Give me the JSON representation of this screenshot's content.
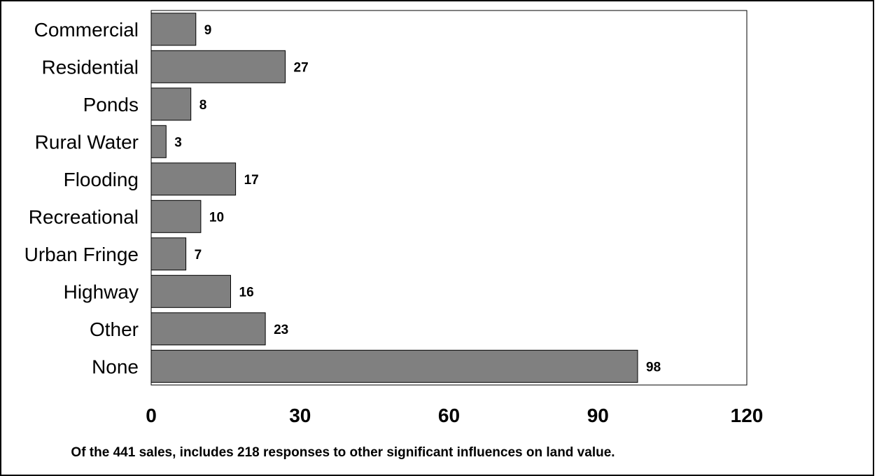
{
  "chart_data": {
    "type": "bar",
    "orientation": "horizontal",
    "categories": [
      "Commercial",
      "Residential",
      "Ponds",
      "Rural Water",
      "Flooding",
      "Recreational",
      "Urban Fringe",
      "Highway",
      "Other",
      "None"
    ],
    "values": [
      9,
      27,
      8,
      3,
      17,
      10,
      7,
      16,
      23,
      98
    ],
    "xlim": [
      0,
      120
    ],
    "xticks": [
      0,
      30,
      60,
      90,
      120
    ],
    "tick_labels": [
      "0",
      "30",
      "60",
      "90",
      "120"
    ],
    "grid": false,
    "bar_color": "#808080",
    "caption": "Of the 441 sales, includes 218 responses to other significant influences on land value."
  }
}
